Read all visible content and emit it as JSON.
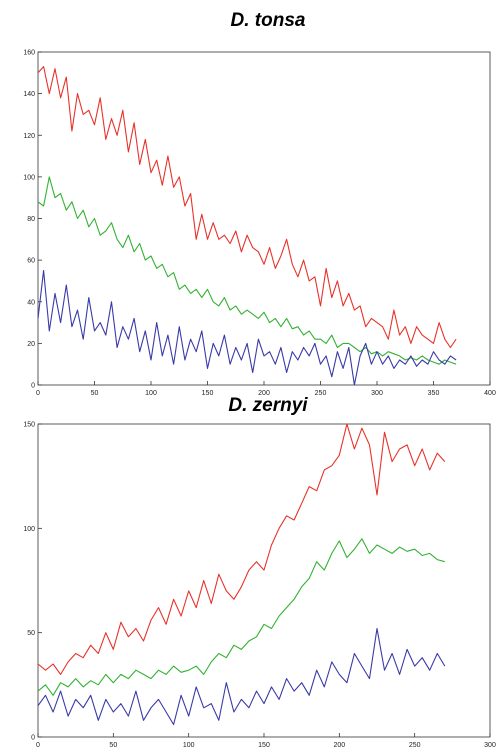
{
  "chart_data": [
    {
      "type": "line",
      "title": "D. tonsa",
      "xlabel": "",
      "ylabel": "",
      "xlim": [
        0,
        400
      ],
      "ylim": [
        0,
        160
      ],
      "xticks": [
        "0",
        "50",
        "100",
        "150",
        "200",
        "250",
        "300",
        "350",
        "400"
      ],
      "yticks": [
        "0",
        "20",
        "40",
        "60",
        "80",
        "100",
        "120",
        "140",
        "160"
      ],
      "grid": false,
      "series": [
        {
          "color": "#e8322a",
          "x": [
            0,
            5,
            10,
            15,
            20,
            25,
            30,
            35,
            40,
            45,
            50,
            55,
            60,
            65,
            70,
            75,
            80,
            85,
            90,
            95,
            100,
            105,
            110,
            115,
            120,
            125,
            130,
            135,
            140,
            145,
            150,
            155,
            160,
            165,
            170,
            175,
            180,
            185,
            190,
            195,
            200,
            205,
            210,
            215,
            220,
            225,
            230,
            235,
            240,
            245,
            250,
            255,
            260,
            265,
            270,
            275,
            280,
            285,
            290,
            295,
            300,
            305,
            310,
            315,
            320,
            325,
            330,
            335,
            340,
            345,
            350,
            355,
            360,
            365,
            370
          ],
          "values": [
            150,
            153,
            140,
            152,
            138,
            148,
            122,
            140,
            130,
            132,
            125,
            138,
            118,
            128,
            120,
            132,
            112,
            126,
            106,
            118,
            102,
            108,
            96,
            110,
            95,
            100,
            86,
            92,
            70,
            82,
            70,
            78,
            70,
            72,
            68,
            74,
            64,
            72,
            66,
            64,
            58,
            66,
            56,
            62,
            70,
            58,
            52,
            60,
            50,
            52,
            38,
            56,
            42,
            50,
            38,
            44,
            36,
            38,
            28,
            32,
            30,
            28,
            22,
            36,
            24,
            28,
            20,
            28,
            24,
            22,
            20,
            30,
            22,
            18,
            22
          ]
        },
        {
          "color": "#33b233",
          "x": [
            0,
            5,
            10,
            15,
            20,
            25,
            30,
            35,
            40,
            45,
            50,
            55,
            60,
            65,
            70,
            75,
            80,
            85,
            90,
            95,
            100,
            105,
            110,
            115,
            120,
            125,
            130,
            135,
            140,
            145,
            150,
            155,
            160,
            165,
            170,
            175,
            180,
            185,
            190,
            195,
            200,
            205,
            210,
            215,
            220,
            225,
            230,
            235,
            240,
            245,
            250,
            255,
            260,
            265,
            270,
            275,
            280,
            285,
            290,
            295,
            300,
            305,
            310,
            315,
            320,
            325,
            330,
            335,
            340,
            345,
            350,
            355,
            360,
            365,
            370
          ],
          "values": [
            88,
            86,
            100,
            90,
            92,
            84,
            88,
            80,
            84,
            76,
            80,
            72,
            74,
            78,
            70,
            66,
            72,
            64,
            68,
            60,
            62,
            56,
            58,
            52,
            54,
            46,
            48,
            44,
            46,
            42,
            46,
            40,
            38,
            42,
            36,
            38,
            34,
            36,
            34,
            32,
            35,
            30,
            32,
            28,
            32,
            27,
            28,
            24,
            26,
            22,
            22,
            20,
            24,
            18,
            20,
            20,
            18,
            16,
            18,
            15,
            16,
            14,
            16,
            15,
            14,
            12,
            13,
            12,
            14,
            12,
            11,
            10,
            12,
            11,
            10
          ]
        },
        {
          "color": "#3a3aa8",
          "x": [
            0,
            5,
            10,
            15,
            20,
            25,
            30,
            35,
            40,
            45,
            50,
            55,
            60,
            65,
            70,
            75,
            80,
            85,
            90,
            95,
            100,
            105,
            110,
            115,
            120,
            125,
            130,
            135,
            140,
            145,
            150,
            155,
            160,
            165,
            170,
            175,
            180,
            185,
            190,
            195,
            200,
            205,
            210,
            215,
            220,
            225,
            230,
            235,
            240,
            245,
            250,
            255,
            260,
            265,
            270,
            275,
            280,
            285,
            290,
            295,
            300,
            305,
            310,
            315,
            320,
            325,
            330,
            335,
            340,
            345,
            350,
            355,
            360,
            365,
            370
          ],
          "values": [
            32,
            55,
            26,
            44,
            30,
            48,
            28,
            36,
            22,
            42,
            26,
            30,
            24,
            40,
            18,
            28,
            22,
            32,
            16,
            26,
            12,
            30,
            14,
            24,
            10,
            28,
            12,
            22,
            16,
            26,
            8,
            20,
            14,
            24,
            10,
            18,
            12,
            20,
            6,
            22,
            14,
            16,
            10,
            18,
            6,
            16,
            12,
            18,
            14,
            20,
            10,
            14,
            4,
            16,
            8,
            18,
            0,
            14,
            20,
            10,
            16,
            10,
            14,
            8,
            12,
            10,
            14,
            9,
            12,
            10,
            16,
            12,
            10,
            14,
            12
          ]
        }
      ]
    },
    {
      "type": "line",
      "title": "D. zernyi",
      "xlabel": "",
      "ylabel": "",
      "xlim": [
        0,
        300
      ],
      "ylim": [
        0,
        150
      ],
      "xticks": [
        "0",
        "50",
        "100",
        "150",
        "200",
        "250",
        "300"
      ],
      "yticks": [
        "0",
        "50",
        "100",
        "150"
      ],
      "grid": false,
      "series": [
        {
          "color": "#e8322a",
          "x": [
            0,
            5,
            10,
            15,
            20,
            25,
            30,
            35,
            40,
            45,
            50,
            55,
            60,
            65,
            70,
            75,
            80,
            85,
            90,
            95,
            100,
            105,
            110,
            115,
            120,
            125,
            130,
            135,
            140,
            145,
            150,
            155,
            160,
            165,
            170,
            175,
            180,
            185,
            190,
            195,
            200,
            205,
            210,
            215,
            220,
            225,
            230,
            235,
            240,
            245,
            250,
            255,
            260,
            265,
            270
          ],
          "values": [
            35,
            32,
            35,
            30,
            36,
            40,
            38,
            44,
            40,
            50,
            42,
            55,
            48,
            52,
            46,
            56,
            62,
            54,
            66,
            58,
            70,
            62,
            75,
            64,
            78,
            70,
            66,
            72,
            80,
            84,
            80,
            92,
            100,
            106,
            104,
            112,
            120,
            118,
            128,
            130,
            135,
            150,
            138,
            148,
            140,
            116,
            146,
            132,
            138,
            140,
            130,
            138,
            128,
            136,
            132
          ]
        },
        {
          "color": "#33b233",
          "x": [
            0,
            5,
            10,
            15,
            20,
            25,
            30,
            35,
            40,
            45,
            50,
            55,
            60,
            65,
            70,
            75,
            80,
            85,
            90,
            95,
            100,
            105,
            110,
            115,
            120,
            125,
            130,
            135,
            140,
            145,
            150,
            155,
            160,
            165,
            170,
            175,
            180,
            185,
            190,
            195,
            200,
            205,
            210,
            215,
            220,
            225,
            230,
            235,
            240,
            245,
            250,
            255,
            260,
            265,
            270
          ],
          "values": [
            22,
            25,
            20,
            26,
            24,
            28,
            24,
            27,
            25,
            30,
            26,
            30,
            28,
            32,
            30,
            28,
            32,
            30,
            34,
            31,
            32,
            34,
            30,
            36,
            40,
            38,
            44,
            42,
            46,
            48,
            54,
            52,
            58,
            62,
            66,
            72,
            76,
            84,
            80,
            88,
            94,
            86,
            90,
            95,
            88,
            92,
            90,
            88,
            91,
            89,
            90,
            87,
            88,
            85,
            84
          ]
        },
        {
          "color": "#3a3aa8",
          "x": [
            0,
            5,
            10,
            15,
            20,
            25,
            30,
            35,
            40,
            45,
            50,
            55,
            60,
            65,
            70,
            75,
            80,
            85,
            90,
            95,
            100,
            105,
            110,
            115,
            120,
            125,
            130,
            135,
            140,
            145,
            150,
            155,
            160,
            165,
            170,
            175,
            180,
            185,
            190,
            195,
            200,
            205,
            210,
            215,
            220,
            225,
            230,
            235,
            240,
            245,
            250,
            255,
            260,
            265,
            270
          ],
          "values": [
            15,
            20,
            12,
            22,
            10,
            18,
            14,
            20,
            8,
            18,
            12,
            16,
            10,
            22,
            8,
            14,
            18,
            12,
            6,
            20,
            10,
            24,
            14,
            16,
            8,
            26,
            12,
            18,
            14,
            22,
            16,
            24,
            18,
            28,
            22,
            26,
            20,
            32,
            24,
            36,
            30,
            26,
            40,
            34,
            28,
            52,
            32,
            40,
            30,
            42,
            34,
            38,
            32,
            40,
            34
          ]
        }
      ]
    }
  ]
}
